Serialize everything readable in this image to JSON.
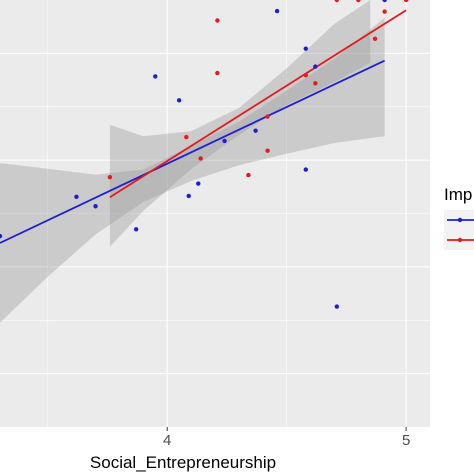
{
  "chart_data": {
    "type": "scatter",
    "title": "",
    "xlabel": "Social_Entrepreneurship",
    "ylabel": "",
    "xlim": [
      3.3,
      5.1
    ],
    "ylim": [
      0.0,
      1.0
    ],
    "x_ticks": [
      4,
      5
    ],
    "grid": true,
    "legend_position": "right",
    "legend_title": "Imp",
    "series": [
      {
        "color": "#1f1fd1",
        "points": [
          {
            "x": 3.3,
            "y": 0.447
          },
          {
            "x": 3.62,
            "y": 0.539
          },
          {
            "x": 3.7,
            "y": 0.517
          },
          {
            "x": 3.87,
            "y": 0.463
          },
          {
            "x": 3.95,
            "y": 0.821
          },
          {
            "x": 4.05,
            "y": 0.765
          },
          {
            "x": 4.09,
            "y": 0.541
          },
          {
            "x": 4.13,
            "y": 0.57
          },
          {
            "x": 4.24,
            "y": 0.67
          },
          {
            "x": 4.37,
            "y": 0.694
          },
          {
            "x": 4.46,
            "y": 0.974
          },
          {
            "x": 4.58,
            "y": 0.886
          },
          {
            "x": 4.58,
            "y": 0.603
          },
          {
            "x": 4.62,
            "y": 0.844
          },
          {
            "x": 4.71,
            "y": 0.282
          },
          {
            "x": 4.91,
            "y": 1.0
          }
        ],
        "fit": {
          "x": [
            3.3,
            4.91
          ],
          "y": [
            0.431,
            0.858
          ]
        },
        "band": {
          "x": [
            3.3,
            3.5,
            3.7,
            3.9,
            4.1,
            4.3,
            4.5,
            4.7,
            4.91
          ],
          "lower": [
            0.244,
            0.352,
            0.451,
            0.527,
            0.576,
            0.613,
            0.64,
            0.665,
            0.681
          ],
          "upper": [
            0.618,
            0.605,
            0.591,
            0.603,
            0.658,
            0.715,
            0.788,
            0.862,
            0.958
          ]
        }
      },
      {
        "color": "#e41a1c",
        "points": [
          {
            "x": 3.76,
            "y": 0.585
          },
          {
            "x": 4.08,
            "y": 0.679
          },
          {
            "x": 4.14,
            "y": 0.629
          },
          {
            "x": 4.21,
            "y": 0.952
          },
          {
            "x": 4.21,
            "y": 0.829
          },
          {
            "x": 4.34,
            "y": 0.59
          },
          {
            "x": 4.42,
            "y": 0.727
          },
          {
            "x": 4.42,
            "y": 0.647
          },
          {
            "x": 4.58,
            "y": 0.824
          },
          {
            "x": 4.62,
            "y": 0.805
          },
          {
            "x": 4.71,
            "y": 1.0
          },
          {
            "x": 4.8,
            "y": 1.0
          },
          {
            "x": 4.87,
            "y": 0.909
          },
          {
            "x": 4.91,
            "y": 0.973
          },
          {
            "x": 5.0,
            "y": 1.0
          }
        ],
        "fit": {
          "x": [
            3.76,
            5.0
          ],
          "y": [
            0.538,
            0.976
          ]
        },
        "band": {
          "x": [
            3.76,
            3.9,
            4.1,
            4.3,
            4.5,
            4.7,
            4.85
          ],
          "lower": [
            0.422,
            0.506,
            0.604,
            0.684,
            0.754,
            0.808,
            0.853
          ],
          "upper": [
            0.708,
            0.681,
            0.693,
            0.747,
            0.84,
            0.944,
            1.0
          ]
        }
      }
    ]
  }
}
